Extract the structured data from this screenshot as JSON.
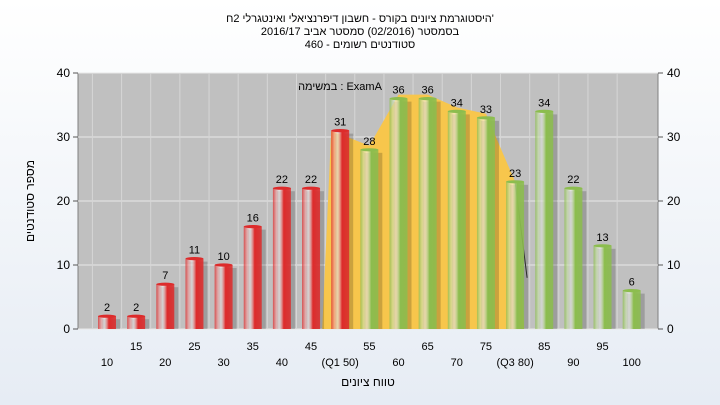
{
  "chart_data": {
    "type": "bar",
    "title": [
      "היסטוגרמת ציונים בקורס - חשבון דיפרנציאלי ואינטגרלי 2ח'",
      "בסמסטר  (02/2016)  סמסטר אביב 2016/17",
      "סטודנטים רשומים - 460"
    ],
    "xlabel": "טווח ציונים",
    "ylabel": "מספר סטודנטים",
    "ylim": [
      0,
      40
    ],
    "yticks": [
      0,
      10,
      20,
      30,
      40
    ],
    "categories": [
      "10",
      "15",
      "20",
      "25",
      "30",
      "35",
      "40",
      "45",
      "(Q1 50)",
      "55",
      "60",
      "65",
      "70",
      "75",
      "(Q3 80)",
      "85",
      "90",
      "95",
      "100"
    ],
    "values": [
      2,
      2,
      7,
      11,
      10,
      16,
      22,
      22,
      31,
      28,
      36,
      36,
      34,
      33,
      23,
      34,
      22,
      13,
      6
    ],
    "colors": [
      "#dd2b2b",
      "#dd2b2b",
      "#dd2b2b",
      "#dd2b2b",
      "#dd2b2b",
      "#dd2b2b",
      "#dd2b2b",
      "#dd2b2b",
      "#dd2b2b",
      "#8cbd4e",
      "#8cbd4e",
      "#8cbd4e",
      "#8cbd4e",
      "#8cbd4e",
      "#8cbd4e",
      "#8cbd4e",
      "#8cbd4e",
      "#8cbd4e",
      "#8cbd4e"
    ],
    "annotation": "במשימה : ExamA",
    "highlight_band": {
      "from": "(Q1 50)",
      "to": "(Q3 80)",
      "color": "#f7c64c"
    },
    "grid": true
  }
}
